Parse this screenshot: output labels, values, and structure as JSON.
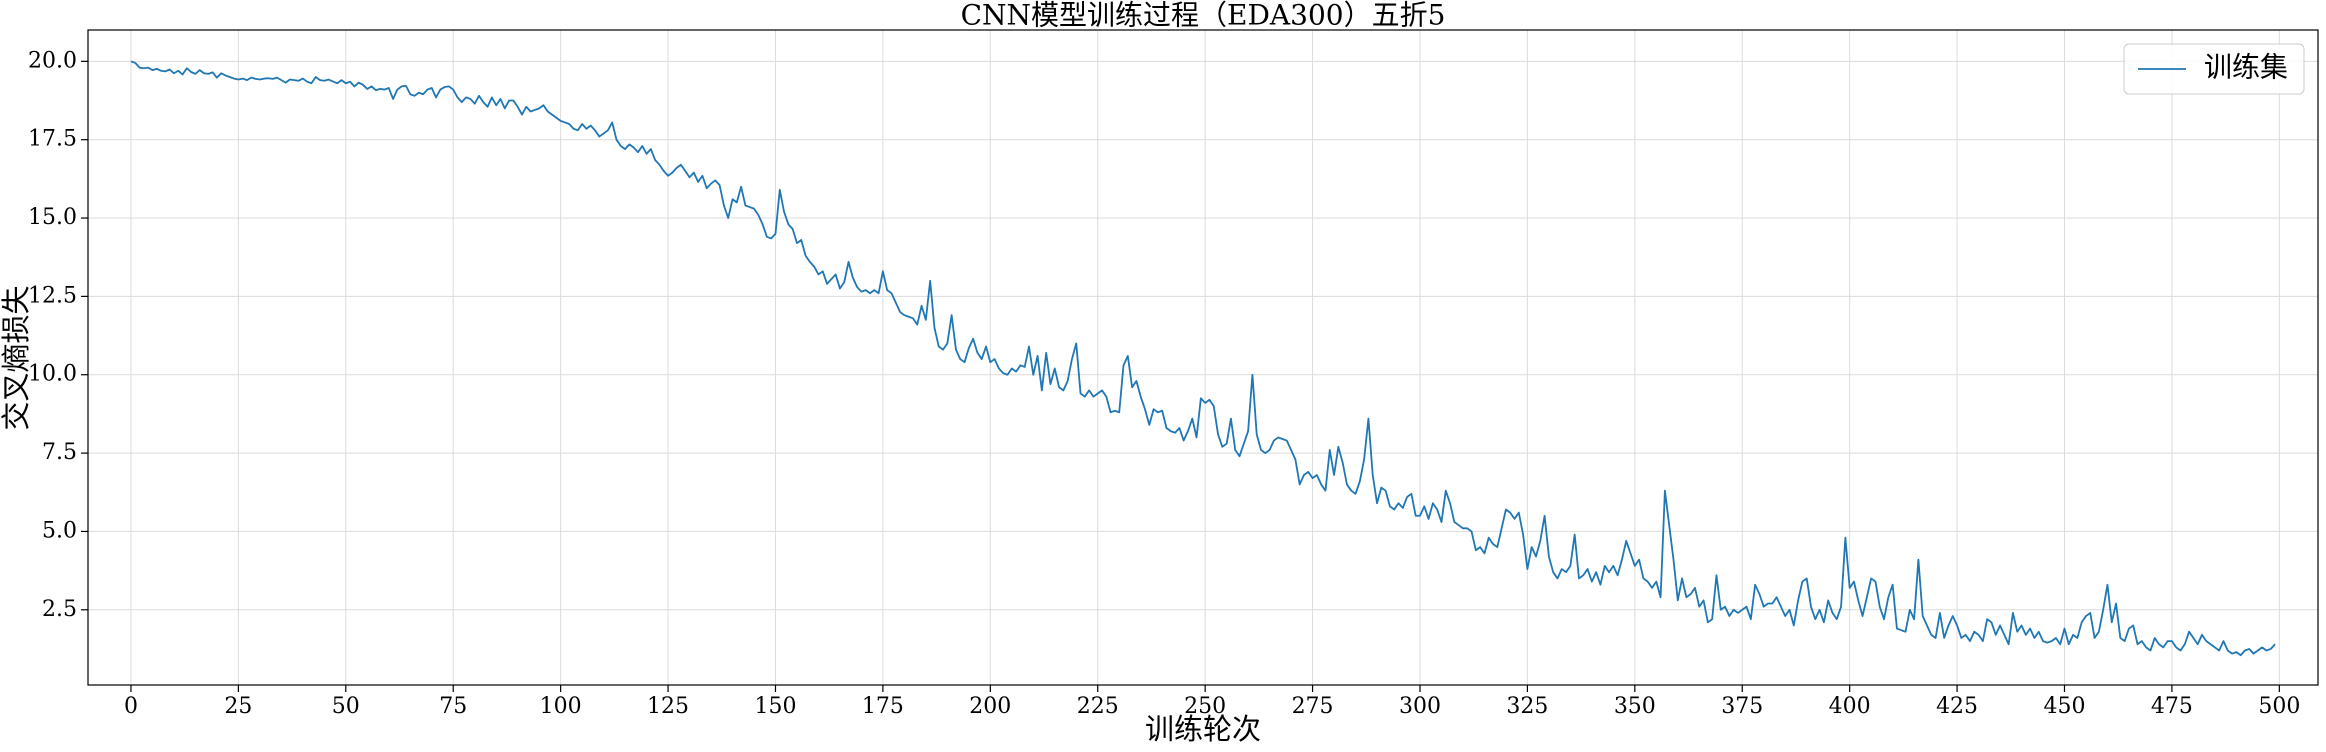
{
  "chart_data": {
    "type": "line",
    "title": "CNN模型训练过程（EDA300）五折5",
    "xlabel": "训练轮次",
    "ylabel": "交叉熵损失",
    "xlim": [
      -10,
      509
    ],
    "ylim": [
      0.1,
      21.0
    ],
    "xticks": [
      0,
      25,
      50,
      75,
      100,
      125,
      150,
      175,
      200,
      225,
      250,
      275,
      300,
      325,
      350,
      375,
      400,
      425,
      450,
      475,
      500
    ],
    "yticks": [
      2.5,
      {
        "value": 5,
        "label": "5.0"
      },
      7.5,
      {
        "value": 10,
        "label": "10.0"
      },
      12.5,
      {
        "value": 15,
        "label": "15.0"
      },
      17.5,
      {
        "value": 20,
        "label": "20.0"
      }
    ],
    "grid": true,
    "legend": "upper right",
    "series": [
      {
        "name": "训练集",
        "color": "#1f77b4",
        "values": [
          20.0,
          19.95,
          19.8,
          19.78,
          19.8,
          19.72,
          19.76,
          19.7,
          19.68,
          19.74,
          19.62,
          19.7,
          19.58,
          19.78,
          19.66,
          19.6,
          19.72,
          19.62,
          19.6,
          19.65,
          19.48,
          19.62,
          19.55,
          19.5,
          19.45,
          19.42,
          19.45,
          19.4,
          19.48,
          19.44,
          19.42,
          19.45,
          19.46,
          19.44,
          19.48,
          19.4,
          19.32,
          19.42,
          19.4,
          19.38,
          19.45,
          19.35,
          19.3,
          19.5,
          19.4,
          19.38,
          19.42,
          19.36,
          19.3,
          19.4,
          19.3,
          19.35,
          19.2,
          19.32,
          19.25,
          19.12,
          19.2,
          19.08,
          19.12,
          19.1,
          19.15,
          18.8,
          19.1,
          19.2,
          19.22,
          18.95,
          18.9,
          19.0,
          18.95,
          19.1,
          19.15,
          18.85,
          19.1,
          19.18,
          19.2,
          19.1,
          18.85,
          18.7,
          18.85,
          18.8,
          18.65,
          18.9,
          18.7,
          18.55,
          18.85,
          18.6,
          18.8,
          18.5,
          18.75,
          18.75,
          18.55,
          18.3,
          18.55,
          18.4,
          18.45,
          18.5,
          18.6,
          18.4,
          18.3,
          18.2,
          18.1,
          18.05,
          18.0,
          17.85,
          17.8,
          18.0,
          17.85,
          17.95,
          17.8,
          17.6,
          17.7,
          17.8,
          18.05,
          17.5,
          17.3,
          17.2,
          17.35,
          17.25,
          17.1,
          17.3,
          17.05,
          17.2,
          16.85,
          16.7,
          16.5,
          16.35,
          16.45,
          16.6,
          16.7,
          16.5,
          16.3,
          16.45,
          16.15,
          16.35,
          15.95,
          16.1,
          16.2,
          16.05,
          15.4,
          15.0,
          15.6,
          15.5,
          16.0,
          15.4,
          15.35,
          15.3,
          15.1,
          14.8,
          14.4,
          14.35,
          14.5,
          15.9,
          15.2,
          14.8,
          14.65,
          14.2,
          14.3,
          13.8,
          13.6,
          13.45,
          13.2,
          13.3,
          12.9,
          13.05,
          13.2,
          12.75,
          12.95,
          13.6,
          13.1,
          12.8,
          12.65,
          12.7,
          12.6,
          12.7,
          12.6,
          13.3,
          12.7,
          12.6,
          12.3,
          12.0,
          11.9,
          11.85,
          11.8,
          11.6,
          12.2,
          11.75,
          13.0,
          11.5,
          10.9,
          10.8,
          11.0,
          11.9,
          10.8,
          10.5,
          10.4,
          10.85,
          11.15,
          10.7,
          10.5,
          10.9,
          10.4,
          10.5,
          10.2,
          10.05,
          10.0,
          10.2,
          10.1,
          10.3,
          10.25,
          10.9,
          10.0,
          10.6,
          9.5,
          10.7,
          9.7,
          10.2,
          9.6,
          9.5,
          9.8,
          10.5,
          11.0,
          9.4,
          9.3,
          9.5,
          9.3,
          9.4,
          9.5,
          9.3,
          8.8,
          8.85,
          8.8,
          10.3,
          10.6,
          9.6,
          9.8,
          9.3,
          8.9,
          8.4,
          8.9,
          8.8,
          8.85,
          8.3,
          8.2,
          8.15,
          8.3,
          7.9,
          8.2,
          8.6,
          8.0,
          9.25,
          9.1,
          9.2,
          9.0,
          8.1,
          7.7,
          7.8,
          8.6,
          7.6,
          7.4,
          7.8,
          8.2,
          10.0,
          8.1,
          7.6,
          7.5,
          7.6,
          7.9,
          8.0,
          7.95,
          7.9,
          7.6,
          7.3,
          6.5,
          6.8,
          6.9,
          6.7,
          6.8,
          6.5,
          6.3,
          7.6,
          6.8,
          7.7,
          7.2,
          6.5,
          6.3,
          6.2,
          6.6,
          7.3,
          8.6,
          6.8,
          5.9,
          6.4,
          6.3,
          5.8,
          5.7,
          5.9,
          5.75,
          6.1,
          6.2,
          5.5,
          5.5,
          5.8,
          5.4,
          5.9,
          5.7,
          5.3,
          6.3,
          5.9,
          5.3,
          5.2,
          5.1,
          5.1,
          5.0,
          4.4,
          4.5,
          4.3,
          4.8,
          4.6,
          4.5,
          5.1,
          5.7,
          5.6,
          5.4,
          5.6,
          4.9,
          3.8,
          4.5,
          4.2,
          4.7,
          5.5,
          4.2,
          3.7,
          3.5,
          3.8,
          3.7,
          3.9,
          4.9,
          3.5,
          3.6,
          3.8,
          3.4,
          3.7,
          3.3,
          3.9,
          3.7,
          3.9,
          3.6,
          4.1,
          4.7,
          4.3,
          3.9,
          4.1,
          3.5,
          3.4,
          3.2,
          3.4,
          2.9,
          6.3,
          5.2,
          4.1,
          2.8,
          3.5,
          2.9,
          3.0,
          3.2,
          2.6,
          2.8,
          2.1,
          2.2,
          3.6,
          2.5,
          2.6,
          2.3,
          2.5,
          2.4,
          2.5,
          2.6,
          2.2,
          3.3,
          3.0,
          2.6,
          2.7,
          2.7,
          2.9,
          2.6,
          2.3,
          2.5,
          2.0,
          2.8,
          3.4,
          3.5,
          2.6,
          2.2,
          2.5,
          2.1,
          2.8,
          2.4,
          2.2,
          2.6,
          4.8,
          3.2,
          3.4,
          2.8,
          2.3,
          2.9,
          3.5,
          3.4,
          2.6,
          2.2,
          2.9,
          3.3,
          1.9,
          1.85,
          1.8,
          2.5,
          2.2,
          4.1,
          2.3,
          2.0,
          1.7,
          1.6,
          2.4,
          1.6,
          2.0,
          2.3,
          2.0,
          1.6,
          1.7,
          1.5,
          1.8,
          1.7,
          1.5,
          2.2,
          2.1,
          1.7,
          2.0,
          1.7,
          1.4,
          2.4,
          1.8,
          2.0,
          1.7,
          1.9,
          1.6,
          1.8,
          1.5,
          1.45,
          1.5,
          1.6,
          1.4,
          1.9,
          1.4,
          1.7,
          1.6,
          2.1,
          2.3,
          2.4,
          1.6,
          1.8,
          2.5,
          3.3,
          2.1,
          2.7,
          1.6,
          1.5,
          1.9,
          2.0,
          1.4,
          1.5,
          1.3,
          1.2,
          1.6,
          1.4,
          1.3,
          1.5,
          1.5,
          1.3,
          1.2,
          1.4,
          1.8,
          1.6,
          1.4,
          1.7,
          1.5,
          1.4,
          1.3,
          1.2,
          1.5,
          1.2,
          1.1,
          1.15,
          1.05,
          1.2,
          1.25,
          1.1,
          1.2,
          1.3,
          1.2,
          1.25,
          1.4
        ]
      }
    ]
  }
}
